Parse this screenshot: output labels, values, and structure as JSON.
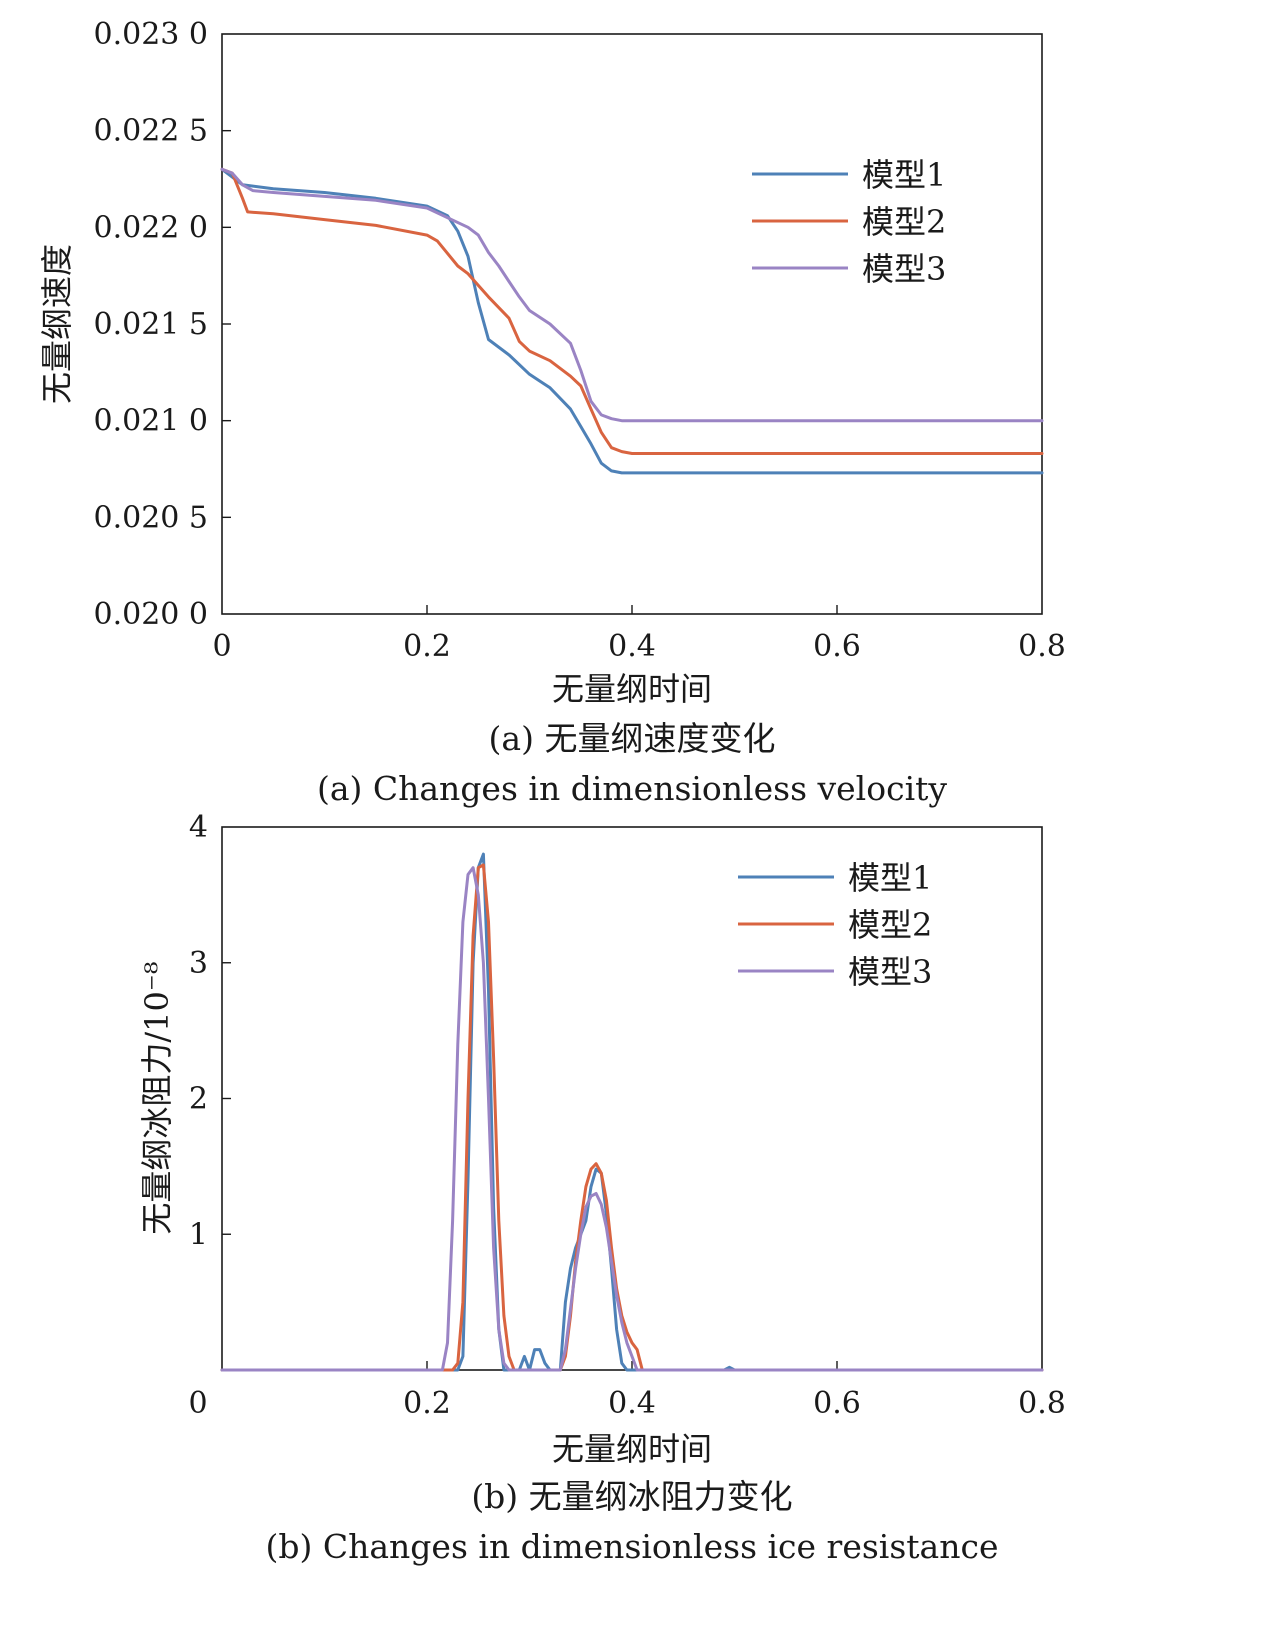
{
  "chart_data": [
    {
      "type": "line",
      "xlabel": "无量纲时间",
      "ylabel": "无量纲速度",
      "caption_cn": "(a) 无量纲速度变化",
      "caption_en": "(a) Changes in dimensionless velocity",
      "xlim": [
        0,
        0.8
      ],
      "ylim": [
        0.02,
        0.023
      ],
      "x_ticks": [
        "0",
        "0.2",
        "0.4",
        "0.6",
        "0.8"
      ],
      "x_tick_values": [
        0,
        0.2,
        0.4,
        0.6,
        0.8
      ],
      "y_ticks": [
        "0.020 0",
        "0.020 5",
        "0.021 0",
        "0.021 5",
        "0.022 0",
        "0.022 5",
        "0.023 0"
      ],
      "y_tick_values": [
        0.02,
        0.0205,
        0.021,
        0.0215,
        0.022,
        0.0225,
        0.023
      ],
      "legend_position": "top-right",
      "series": [
        {
          "name": "模型1",
          "color": "#4e81b7",
          "x": [
            0,
            0.02,
            0.05,
            0.1,
            0.15,
            0.2,
            0.22,
            0.23,
            0.24,
            0.25,
            0.26,
            0.28,
            0.3,
            0.32,
            0.34,
            0.35,
            0.36,
            0.37,
            0.38,
            0.39,
            0.4,
            0.6,
            0.8
          ],
          "y": [
            0.0223,
            0.02222,
            0.0222,
            0.02218,
            0.02215,
            0.02211,
            0.02206,
            0.02198,
            0.02185,
            0.02161,
            0.02142,
            0.02134,
            0.02124,
            0.02117,
            0.02106,
            0.02097,
            0.02088,
            0.02078,
            0.02074,
            0.02073,
            0.02073,
            0.02073,
            0.02073
          ]
        },
        {
          "name": "模型2",
          "color": "#d96440",
          "x": [
            0,
            0.01,
            0.02,
            0.025,
            0.05,
            0.1,
            0.15,
            0.2,
            0.21,
            0.23,
            0.24,
            0.26,
            0.28,
            0.29,
            0.3,
            0.32,
            0.34,
            0.35,
            0.36,
            0.37,
            0.38,
            0.39,
            0.4,
            0.6,
            0.8
          ],
          "y": [
            0.0223,
            0.02228,
            0.02215,
            0.02208,
            0.02207,
            0.02204,
            0.02201,
            0.02196,
            0.02193,
            0.0218,
            0.02176,
            0.02164,
            0.02153,
            0.02141,
            0.02136,
            0.02131,
            0.02123,
            0.02118,
            0.02106,
            0.02094,
            0.02086,
            0.02084,
            0.02083,
            0.02083,
            0.02083
          ]
        },
        {
          "name": "模型3",
          "color": "#9a84c4",
          "x": [
            0,
            0.01,
            0.02,
            0.03,
            0.05,
            0.1,
            0.15,
            0.2,
            0.22,
            0.24,
            0.25,
            0.26,
            0.27,
            0.28,
            0.29,
            0.3,
            0.32,
            0.34,
            0.35,
            0.36,
            0.37,
            0.38,
            0.39,
            0.4,
            0.6,
            0.8
          ],
          "y": [
            0.0223,
            0.02228,
            0.02222,
            0.02219,
            0.02218,
            0.02216,
            0.02214,
            0.0221,
            0.02205,
            0.022,
            0.02196,
            0.02187,
            0.0218,
            0.02172,
            0.02164,
            0.02157,
            0.0215,
            0.0214,
            0.02126,
            0.0211,
            0.02103,
            0.02101,
            0.021,
            0.021,
            0.021,
            0.021
          ]
        }
      ]
    },
    {
      "type": "line",
      "xlabel": "无量纲时间",
      "ylabel": "无量纲冰阻力/10⁻⁸",
      "caption_cn": "(b) 无量纲冰阻力变化",
      "caption_en": "(b) Changes in dimensionless ice resistance",
      "xlim": [
        0,
        0.8
      ],
      "ylim": [
        0,
        4
      ],
      "x_ticks": [
        "0",
        "0.2",
        "0.4",
        "0.6",
        "0.8"
      ],
      "x_tick_values": [
        0,
        0.2,
        0.4,
        0.6,
        0.8
      ],
      "y_ticks": [
        "1",
        "2",
        "3",
        "4"
      ],
      "y_tick_values": [
        1,
        2,
        3,
        4
      ],
      "legend_position": "top-right",
      "series": [
        {
          "name": "模型1",
          "color": "#4e81b7",
          "x": [
            0,
            0.225,
            0.23,
            0.235,
            0.24,
            0.245,
            0.25,
            0.255,
            0.26,
            0.265,
            0.27,
            0.275,
            0.29,
            0.295,
            0.3,
            0.305,
            0.31,
            0.315,
            0.32,
            0.33,
            0.335,
            0.34,
            0.345,
            0.35,
            0.355,
            0.36,
            0.365,
            0.37,
            0.375,
            0.38,
            0.385,
            0.39,
            0.395,
            0.49,
            0.495,
            0.5,
            0.8
          ],
          "y": [
            0,
            0,
            0,
            0.1,
            1.4,
            3.0,
            3.7,
            3.8,
            2.8,
            1.2,
            0.3,
            0,
            0,
            0.1,
            0,
            0.15,
            0.15,
            0.05,
            0,
            0,
            0.5,
            0.75,
            0.9,
            1.0,
            1.1,
            1.35,
            1.48,
            1.45,
            1.15,
            0.75,
            0.3,
            0.05,
            0,
            0,
            0.02,
            0,
            0
          ]
        },
        {
          "name": "模型2",
          "color": "#d96440",
          "x": [
            0,
            0.225,
            0.23,
            0.235,
            0.24,
            0.245,
            0.25,
            0.255,
            0.26,
            0.265,
            0.27,
            0.275,
            0.28,
            0.285,
            0.33,
            0.335,
            0.34,
            0.345,
            0.35,
            0.355,
            0.36,
            0.365,
            0.37,
            0.375,
            0.38,
            0.385,
            0.39,
            0.395,
            0.4,
            0.405,
            0.41,
            0.8
          ],
          "y": [
            0,
            0,
            0.05,
            0.5,
            2.0,
            3.2,
            3.7,
            3.72,
            3.3,
            2.3,
            1.1,
            0.4,
            0.1,
            0,
            0,
            0.1,
            0.4,
            0.8,
            1.1,
            1.35,
            1.48,
            1.52,
            1.45,
            1.25,
            0.9,
            0.6,
            0.4,
            0.28,
            0.2,
            0.15,
            0,
            0
          ]
        },
        {
          "name": "模型3",
          "color": "#9a84c4",
          "x": [
            0,
            0.215,
            0.22,
            0.225,
            0.23,
            0.235,
            0.24,
            0.245,
            0.25,
            0.255,
            0.26,
            0.265,
            0.27,
            0.275,
            0.28,
            0.33,
            0.335,
            0.34,
            0.345,
            0.35,
            0.355,
            0.36,
            0.365,
            0.37,
            0.375,
            0.38,
            0.385,
            0.39,
            0.395,
            0.4,
            0.405,
            0.8
          ],
          "y": [
            0,
            0,
            0.2,
            1.1,
            2.4,
            3.3,
            3.65,
            3.7,
            3.5,
            3.0,
            2.0,
            0.9,
            0.3,
            0.05,
            0,
            0,
            0.15,
            0.45,
            0.75,
            1.0,
            1.2,
            1.28,
            1.3,
            1.22,
            1.05,
            0.8,
            0.55,
            0.35,
            0.2,
            0.1,
            0,
            0
          ]
        }
      ]
    }
  ],
  "extra_tick_b_origin": "0"
}
